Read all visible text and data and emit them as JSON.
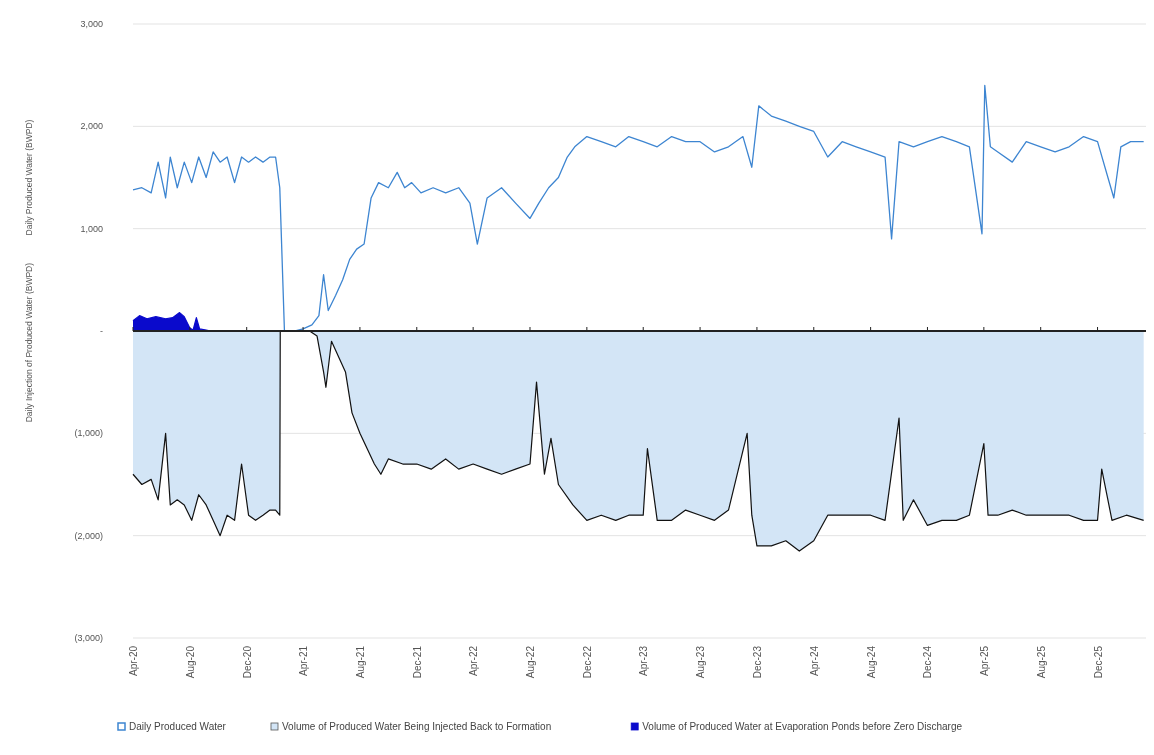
{
  "chart_data": {
    "type": "area",
    "ylabel": "Daily Produced Water (BWPD)",
    "annotations": [
      "Daily Injection of Produced Water (BWPD)"
    ],
    "ylim": [
      -3000,
      3000
    ],
    "yticks": [
      {
        "value": 3000,
        "label": "3,000"
      },
      {
        "value": 2000,
        "label": "2,000"
      },
      {
        "value": 1000,
        "label": "1,000"
      },
      {
        "value": 0,
        "label": "-"
      },
      {
        "value": -1000,
        "label": "(1,000)"
      },
      {
        "value": -2000,
        "label": "(2,000)"
      },
      {
        "value": -3000,
        "label": "(3,000)"
      }
    ],
    "xlim": [
      "2020-04-01",
      "2026-03-15"
    ],
    "xticks": [
      {
        "value": "2020-04-01",
        "label": "Apr-20"
      },
      {
        "value": "2020-08-01",
        "label": "Aug-20"
      },
      {
        "value": "2020-12-01",
        "label": "Dec-20"
      },
      {
        "value": "2021-04-01",
        "label": "Apr-21"
      },
      {
        "value": "2021-08-01",
        "label": "Aug-21"
      },
      {
        "value": "2021-12-01",
        "label": "Dec-21"
      },
      {
        "value": "2022-04-01",
        "label": "Apr-22"
      },
      {
        "value": "2022-08-01",
        "label": "Aug-22"
      },
      {
        "value": "2022-12-01",
        "label": "Dec-22"
      },
      {
        "value": "2023-04-01",
        "label": "Apr-23"
      },
      {
        "value": "2023-08-01",
        "label": "Aug-23"
      },
      {
        "value": "2023-12-01",
        "label": "Dec-23"
      },
      {
        "value": "2024-04-01",
        "label": "Apr-24"
      },
      {
        "value": "2024-08-01",
        "label": "Aug-24"
      },
      {
        "value": "2024-12-01",
        "label": "Dec-24"
      },
      {
        "value": "2025-04-01",
        "label": "Apr-25"
      },
      {
        "value": "2025-08-01",
        "label": "Aug-25"
      },
      {
        "value": "2025-12-01",
        "label": "Dec-25"
      }
    ],
    "grid": "y",
    "legend": "bottom",
    "series": [
      {
        "name": "Daily Produced Water",
        "type": "line",
        "color": "#3d85d1",
        "x": [
          "2020-04-01",
          "2020-04-20",
          "2020-05-10",
          "2020-05-25",
          "2020-06-10",
          "2020-06-20",
          "2020-07-05",
          "2020-07-20",
          "2020-08-05",
          "2020-08-20",
          "2020-09-05",
          "2020-09-20",
          "2020-10-05",
          "2020-10-20",
          "2020-11-05",
          "2020-11-20",
          "2020-12-05",
          "2020-12-20",
          "2021-01-05",
          "2021-01-20",
          "2021-02-01",
          "2021-02-10",
          "2021-02-20",
          "2021-03-15",
          "2021-04-01",
          "2021-04-20",
          "2021-05-05",
          "2021-05-15",
          "2021-05-25",
          "2021-06-10",
          "2021-06-25",
          "2021-07-10",
          "2021-07-25",
          "2021-08-10",
          "2021-08-25",
          "2021-09-10",
          "2021-10-01",
          "2021-10-20",
          "2021-11-05",
          "2021-11-20",
          "2021-12-10",
          "2022-01-05",
          "2022-02-01",
          "2022-03-01",
          "2022-03-25",
          "2022-04-10",
          "2022-05-01",
          "2022-06-01",
          "2022-07-01",
          "2022-08-01",
          "2022-08-20",
          "2022-09-10",
          "2022-10-01",
          "2022-10-20",
          "2022-11-05",
          "2022-12-01",
          "2023-01-01",
          "2023-02-01",
          "2023-03-01",
          "2023-04-01",
          "2023-05-01",
          "2023-06-01",
          "2023-07-01",
          "2023-08-01",
          "2023-09-01",
          "2023-10-01",
          "2023-11-01",
          "2023-11-20",
          "2023-12-05",
          "2024-01-01",
          "2024-02-01",
          "2024-03-01",
          "2024-04-01",
          "2024-05-01",
          "2024-06-01",
          "2024-07-01",
          "2024-08-01",
          "2024-09-01",
          "2024-09-15",
          "2024-10-01",
          "2024-11-01",
          "2024-12-01",
          "2025-01-01",
          "2025-02-01",
          "2025-03-01",
          "2025-03-28",
          "2025-04-03",
          "2025-04-15",
          "2025-05-01",
          "2025-06-01",
          "2025-07-01",
          "2025-08-01",
          "2025-09-01",
          "2025-10-01",
          "2025-11-01",
          "2025-12-01",
          "2026-01-05",
          "2026-01-20",
          "2026-02-10",
          "2026-03-10"
        ],
        "values": [
          1380,
          1400,
          1350,
          1650,
          1300,
          1700,
          1400,
          1650,
          1450,
          1700,
          1500,
          1750,
          1650,
          1700,
          1450,
          1700,
          1650,
          1700,
          1650,
          1700,
          1700,
          1400,
          0,
          0,
          20,
          60,
          150,
          550,
          200,
          350,
          500,
          700,
          800,
          850,
          1300,
          1450,
          1400,
          1550,
          1400,
          1450,
          1350,
          1400,
          1350,
          1400,
          1250,
          850,
          1300,
          1400,
          1250,
          1100,
          1250,
          1400,
          1500,
          1700,
          1800,
          1900,
          1850,
          1800,
          1900,
          1850,
          1800,
          1900,
          1850,
          1850,
          1750,
          1800,
          1900,
          1600,
          2200,
          2100,
          2050,
          2000,
          1950,
          1700,
          1850,
          1800,
          1750,
          1700,
          900,
          1850,
          1800,
          1850,
          1900,
          1850,
          1800,
          950,
          2400,
          1800,
          1750,
          1650,
          1850,
          1800,
          1750,
          1800,
          1900,
          1850,
          1300,
          1800,
          1850,
          1850
        ]
      },
      {
        "name": "Volume of Produced Water Being Injected Back to Formation",
        "color": "#d3e5f6",
        "x": [
          "2020-04-01",
          "2020-04-20",
          "2020-05-10",
          "2020-05-25",
          "2020-06-10",
          "2020-06-20",
          "2020-07-05",
          "2020-07-20",
          "2020-08-05",
          "2020-08-20",
          "2020-09-05",
          "2020-09-20",
          "2020-10-05",
          "2020-10-20",
          "2020-11-05",
          "2020-11-20",
          "2020-12-05",
          "2020-12-20",
          "2021-01-05",
          "2021-01-20",
          "2021-02-01",
          "2021-02-10",
          "2021-02-11",
          "2021-04-15",
          "2021-05-01",
          "2021-05-15",
          "2021-05-20",
          "2021-06-01",
          "2021-07-01",
          "2021-07-15",
          "2021-08-01",
          "2021-09-01",
          "2021-09-15",
          "2021-10-01",
          "2021-11-01",
          "2021-12-01",
          "2022-01-01",
          "2022-02-01",
          "2022-03-01",
          "2022-04-01",
          "2022-05-01",
          "2022-06-01",
          "2022-07-01",
          "2022-08-01",
          "2022-08-15",
          "2022-09-01",
          "2022-09-15",
          "2022-10-01",
          "2022-11-01",
          "2022-12-01",
          "2023-01-01",
          "2023-02-01",
          "2023-03-01",
          "2023-04-01",
          "2023-04-10",
          "2023-05-01",
          "2023-06-01",
          "2023-07-01",
          "2023-08-01",
          "2023-09-01",
          "2023-10-01",
          "2023-11-10",
          "2023-11-20",
          "2023-12-01",
          "2024-01-01",
          "2024-02-01",
          "2024-03-01",
          "2024-04-01",
          "2024-05-01",
          "2024-06-01",
          "2024-07-01",
          "2024-08-01",
          "2024-09-01",
          "2024-10-01",
          "2024-10-10",
          "2024-11-01",
          "2024-12-01",
          "2025-01-01",
          "2025-02-01",
          "2025-03-01",
          "2025-04-01",
          "2025-04-10",
          "2025-05-01",
          "2025-06-01",
          "2025-07-01",
          "2025-08-01",
          "2025-09-01",
          "2025-10-01",
          "2025-11-01",
          "2025-12-01",
          "2025-12-10",
          "2026-01-01",
          "2026-02-01",
          "2026-03-10"
        ],
        "values": [
          -1400,
          -1500,
          -1450,
          -1650,
          -1000,
          -1700,
          -1650,
          -1700,
          -1850,
          -1600,
          -1700,
          -1850,
          -2000,
          -1800,
          -1850,
          -1300,
          -1800,
          -1850,
          -1800,
          -1750,
          -1750,
          -1800,
          0,
          0,
          -50,
          -400,
          -550,
          -100,
          -400,
          -800,
          -1000,
          -1300,
          -1400,
          -1250,
          -1300,
          -1300,
          -1350,
          -1250,
          -1350,
          -1300,
          -1350,
          -1400,
          -1350,
          -1300,
          -500,
          -1400,
          -1050,
          -1500,
          -1700,
          -1850,
          -1800,
          -1850,
          -1800,
          -1800,
          -1150,
          -1850,
          -1850,
          -1750,
          -1800,
          -1850,
          -1750,
          -1000,
          -1800,
          -2100,
          -2100,
          -2050,
          -2150,
          -2050,
          -1800,
          -1800,
          -1800,
          -1800,
          -1850,
          -850,
          -1850,
          -1650,
          -1900,
          -1850,
          -1850,
          -1800,
          -1100,
          -1800,
          -1800,
          -1750,
          -1800,
          -1800,
          -1800,
          -1800,
          -1850,
          -1850,
          -1350,
          -1850,
          -1800,
          -1850
        ]
      },
      {
        "name": "Volume of Produced Water at Evaporation Ponds before Zero Discharge",
        "color": "#0a0acc",
        "x": [
          "2020-04-01",
          "2020-04-15",
          "2020-05-01",
          "2020-05-20",
          "2020-06-10",
          "2020-06-25",
          "2020-07-10",
          "2020-07-20",
          "2020-08-01",
          "2020-08-08",
          "2020-08-15",
          "2020-08-22",
          "2020-09-05",
          "2020-09-15"
        ],
        "values": [
          100,
          150,
          120,
          140,
          120,
          130,
          180,
          140,
          30,
          10,
          130,
          20,
          10,
          0
        ]
      }
    ]
  }
}
